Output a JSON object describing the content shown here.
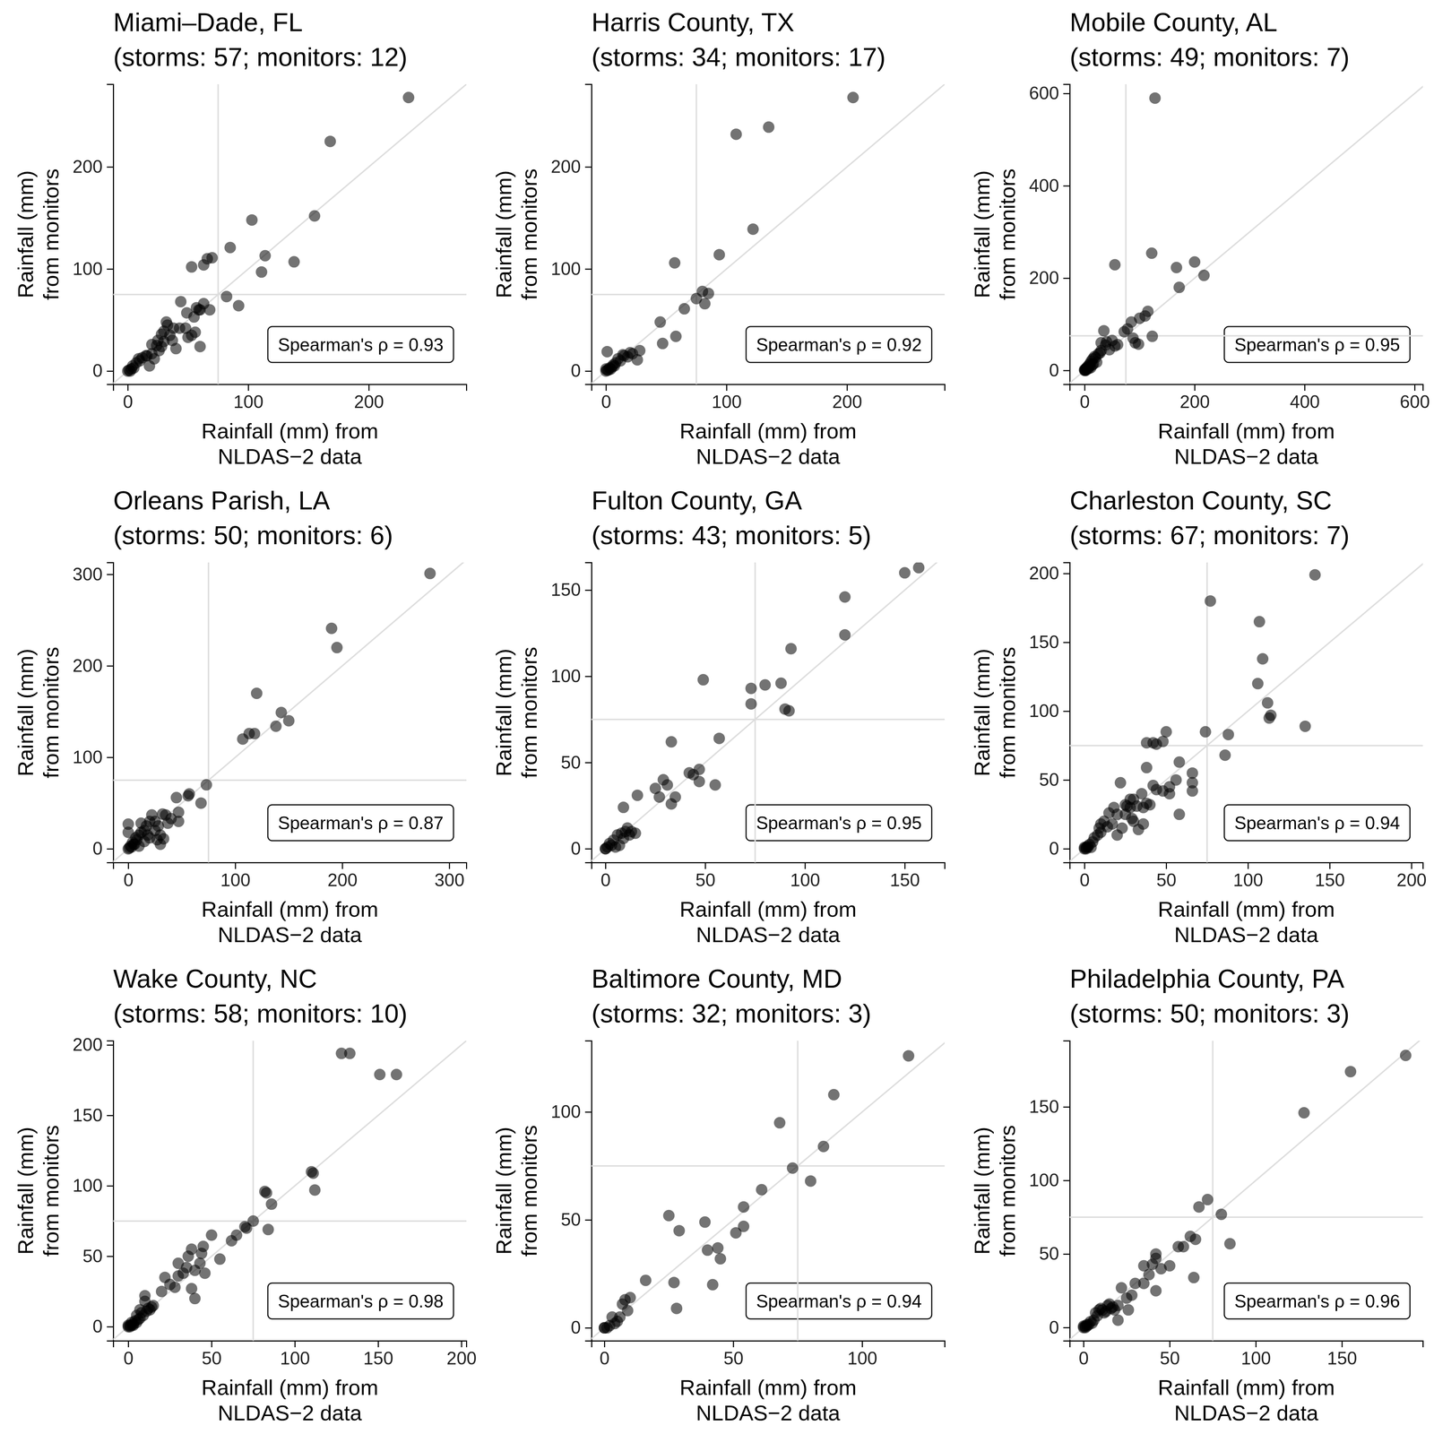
{
  "chart_data": [
    {
      "type": "scatter",
      "title": "Miami–Dade, FL",
      "subtitle": "(storms: 57; monitors: 12)",
      "x_label": [
        "Rainfall (mm)  from",
        "NLDAS−2 data"
      ],
      "y_label": [
        "Rainfall (mm)",
        "from monitors"
      ],
      "annotation": "Spearman's ρ = 0.93",
      "color": "#000000",
      "x": [
        233,
        168,
        103,
        155,
        85,
        114,
        111,
        138,
        70,
        66,
        82,
        92,
        63,
        60,
        68,
        57,
        53,
        63,
        59,
        44,
        55,
        49,
        60,
        56,
        48,
        43,
        38,
        32,
        33,
        28,
        30,
        50,
        53,
        37,
        30,
        28,
        24,
        20,
        20,
        16,
        12,
        10,
        7,
        5,
        3,
        1,
        0,
        2,
        18,
        22,
        25,
        15,
        40,
        35,
        26,
        9,
        4
      ],
      "values": [
        268,
        225,
        148,
        152,
        121,
        113,
        97,
        107,
        111,
        110,
        73,
        64,
        66,
        60,
        60,
        62,
        102,
        104,
        60,
        68,
        53,
        57,
        24,
        38,
        42,
        42,
        42,
        48,
        45,
        36,
        39,
        33,
        35,
        30,
        29,
        24,
        25,
        26,
        17,
        15,
        13,
        10,
        8,
        3,
        2,
        1,
        0,
        0,
        5,
        12,
        30,
        15,
        22,
        35,
        20,
        12,
        5
      ],
      "xlim": [
        -12,
        281
      ],
      "ylim": [
        -13,
        281
      ],
      "xticks": [
        0,
        100,
        200
      ],
      "yticks": [
        0,
        100,
        200
      ],
      "ref_x": 75,
      "ref_y": 75
    },
    {
      "type": "scatter",
      "title": "Harris County, TX",
      "subtitle": "(storms: 34; monitors: 17)",
      "x_label": [
        "Rainfall (mm)  from",
        "NLDAS−2 data"
      ],
      "y_label": [
        "Rainfall (mm)",
        "from monitors"
      ],
      "annotation": "Spearman's ρ = 0.92",
      "color": "#000000",
      "x": [
        205,
        108,
        135,
        122,
        94,
        57,
        75,
        80,
        85,
        82,
        65,
        45,
        58,
        47,
        28,
        26,
        22,
        18,
        15,
        12,
        10,
        8,
        6,
        5,
        3,
        1,
        1,
        0,
        2,
        4,
        7,
        14,
        0,
        20
      ],
      "values": [
        268,
        232,
        239,
        139,
        114,
        106,
        71,
        78,
        76,
        66,
        61,
        48,
        34,
        27,
        20,
        11,
        17,
        14,
        15,
        10,
        12,
        8,
        6,
        4,
        3,
        19,
        1,
        0,
        1,
        2,
        5,
        16,
        2,
        18
      ],
      "xlim": [
        -12,
        281
      ],
      "ylim": [
        -13,
        281
      ],
      "xticks": [
        0,
        100,
        200
      ],
      "yticks": [
        0,
        100,
        200
      ],
      "ref_x": 75,
      "ref_y": 75
    },
    {
      "type": "scatter",
      "title": "Mobile County, AL",
      "subtitle": "(storms: 49; monitors: 7)",
      "x_label": [
        "Rainfall (mm)  from",
        "NLDAS−2 data"
      ],
      "y_label": [
        "Rainfall (mm)",
        "from monitors"
      ],
      "annotation": "Spearman's ρ = 0.95",
      "color": "#000000",
      "x": [
        128,
        55,
        122,
        167,
        200,
        217,
        172,
        123,
        115,
        110,
        100,
        85,
        78,
        72,
        60,
        92,
        98,
        88,
        55,
        40,
        35,
        45,
        38,
        30,
        25,
        20,
        22,
        15,
        12,
        10,
        8,
        5,
        3,
        2,
        1,
        0,
        4,
        6,
        18,
        28,
        30,
        50,
        14,
        7,
        9,
        2,
        0,
        11,
        16
      ],
      "values": [
        590,
        229,
        254,
        223,
        235,
        206,
        180,
        74,
        128,
        118,
        113,
        105,
        90,
        84,
        56,
        60,
        57,
        70,
        53,
        62,
        86,
        45,
        55,
        43,
        36,
        28,
        18,
        25,
        20,
        15,
        12,
        8,
        5,
        2,
        1,
        0,
        3,
        6,
        30,
        38,
        60,
        65,
        12,
        4,
        9,
        0,
        2,
        6,
        14
      ],
      "xlim": [
        -27,
        615
      ],
      "ylim": [
        -30,
        620
      ],
      "xticks": [
        0,
        200,
        400,
        600
      ],
      "yticks": [
        0,
        200,
        400,
        600
      ],
      "ref_x": 75,
      "ref_y": 75
    },
    {
      "type": "scatter",
      "title": "Orleans Parish, LA",
      "subtitle": "(storms: 50; monitors: 6)",
      "x_label": [
        "Rainfall (mm)  from",
        "NLDAS−2 data"
      ],
      "y_label": [
        "Rainfall (mm)",
        "from monitors"
      ],
      "annotation": "Spearman's ρ = 0.87",
      "color": "#000000",
      "x": [
        282,
        190,
        195,
        120,
        143,
        150,
        138,
        113,
        118,
        107,
        73,
        68,
        57,
        56,
        45,
        47,
        40,
        47,
        35,
        32,
        30,
        28,
        25,
        22,
        25,
        20,
        18,
        17,
        15,
        12,
        10,
        8,
        5,
        2,
        0,
        0,
        0,
        1,
        3,
        6,
        10,
        15,
        20,
        30,
        27,
        37,
        12,
        4,
        7,
        33
      ],
      "values": [
        301,
        241,
        220,
        170,
        149,
        140,
        134,
        126,
        126,
        120,
        70,
        50,
        60,
        58,
        56,
        40,
        33,
        30,
        37,
        38,
        15,
        25,
        30,
        37,
        20,
        30,
        15,
        25,
        20,
        18,
        15,
        10,
        5,
        3,
        27,
        18,
        0,
        1,
        2,
        5,
        3,
        8,
        12,
        5,
        10,
        28,
        28,
        7,
        12,
        11
      ],
      "xlim": [
        -14,
        316
      ],
      "ylim": [
        -15,
        313
      ],
      "xticks": [
        0,
        100,
        200,
        300
      ],
      "yticks": [
        0,
        100,
        200,
        300
      ],
      "ref_x": 75,
      "ref_y": 75
    },
    {
      "type": "scatter",
      "title": "Fulton County, GA",
      "subtitle": "(storms: 43; monitors: 5)",
      "x_label": [
        "Rainfall (mm)  from",
        "NLDAS−2 data"
      ],
      "y_label": [
        "Rainfall (mm)",
        "from monitors"
      ],
      "annotation": "Spearman's ρ = 0.95",
      "color": "#000000",
      "x": [
        157,
        150,
        120,
        120,
        93,
        88,
        80,
        73,
        73,
        90,
        92,
        49,
        57,
        33,
        47,
        42,
        44,
        47,
        55,
        31,
        29,
        25,
        27,
        35,
        33,
        16,
        9,
        11,
        13,
        15,
        8,
        10,
        6,
        4,
        2,
        0,
        1,
        0,
        5,
        7,
        12,
        9,
        3
      ],
      "values": [
        163,
        160,
        146,
        124,
        116,
        96,
        95,
        93,
        84,
        81,
        80,
        98,
        64,
        62,
        46,
        44,
        43,
        39,
        37,
        37,
        40,
        35,
        30,
        30,
        26,
        31,
        24,
        12,
        10,
        9,
        9,
        10,
        8,
        5,
        3,
        0,
        1,
        0,
        1,
        2,
        8,
        6,
        2
      ],
      "xlim": [
        -7,
        170
      ],
      "ylim": [
        -8,
        166
      ],
      "xticks": [
        0,
        50,
        100,
        150
      ],
      "yticks": [
        0,
        50,
        100,
        150
      ],
      "ref_x": 75,
      "ref_y": 75
    },
    {
      "type": "scatter",
      "title": "Charleston County, SC",
      "subtitle": "(storms: 67; monitors: 7)",
      "x_label": [
        "Rainfall (mm)  from",
        "NLDAS−2 data"
      ],
      "y_label": [
        "Rainfall (mm)",
        "from monitors"
      ],
      "annotation": "Spearman's ρ = 0.94",
      "color": "#000000",
      "x": [
        141,
        77,
        107,
        109,
        112,
        113,
        106,
        114,
        135,
        88,
        86,
        74,
        66,
        66,
        66,
        58,
        58,
        50,
        48,
        42,
        38,
        44,
        38,
        52,
        48,
        52,
        42,
        35,
        30,
        28,
        25,
        22,
        26,
        32,
        36,
        38,
        40,
        33,
        30,
        28,
        20,
        18,
        15,
        12,
        10,
        10,
        8,
        5,
        3,
        2,
        1,
        0,
        2,
        4,
        1,
        0,
        6,
        14,
        17,
        23,
        25,
        36,
        44,
        56,
        29,
        20,
        9
      ],
      "values": [
        199,
        180,
        165,
        138,
        106,
        95,
        120,
        97,
        89,
        83,
        68,
        85,
        55,
        48,
        42,
        63,
        25,
        85,
        78,
        77,
        77,
        76,
        59,
        45,
        42,
        40,
        46,
        40,
        36,
        36,
        32,
        48,
        31,
        31,
        30,
        33,
        32,
        14,
        20,
        30,
        25,
        30,
        26,
        20,
        18,
        12,
        10,
        5,
        3,
        1,
        0,
        0,
        2,
        1,
        1,
        1,
        8,
        16,
        18,
        15,
        25,
        18,
        43,
        50,
        22,
        10,
        15
      ],
      "xlim": [
        -9,
        207
      ],
      "ylim": [
        -10,
        208
      ],
      "xticks": [
        0,
        50,
        100,
        150,
        200
      ],
      "yticks": [
        0,
        50,
        100,
        150,
        200
      ],
      "ref_x": 75,
      "ref_y": 75
    },
    {
      "type": "scatter",
      "title": "Wake County, NC",
      "subtitle": "(storms: 58; monitors: 10)",
      "x_label": [
        "Rainfall (mm)  from",
        "NLDAS−2 data"
      ],
      "y_label": [
        "Rainfall (mm)",
        "from monitors"
      ],
      "annotation": "Spearman's ρ = 0.98",
      "color": "#000000",
      "x": [
        128,
        133,
        151,
        161,
        110,
        111,
        112,
        82,
        83,
        86,
        84,
        75,
        70,
        71,
        65,
        62,
        55,
        50,
        45,
        44,
        43,
        40,
        38,
        36,
        35,
        33,
        30,
        40,
        38,
        25,
        28,
        22,
        15,
        13,
        12,
        10,
        10,
        8,
        7,
        6,
        5,
        4,
        3,
        2,
        1,
        0,
        1,
        0,
        2,
        3,
        9,
        11,
        14,
        5,
        7,
        20,
        30,
        46
      ],
      "values": [
        194,
        194,
        179,
        179,
        110,
        109,
        97,
        96,
        95,
        87,
        69,
        75,
        71,
        70,
        65,
        61,
        48,
        65,
        57,
        52,
        45,
        40,
        55,
        50,
        42,
        38,
        36,
        20,
        27,
        30,
        28,
        35,
        15,
        12,
        13,
        22,
        18,
        10,
        6,
        5,
        3,
        4,
        2,
        1,
        1,
        0,
        0,
        1,
        3,
        1,
        8,
        11,
        14,
        8,
        12,
        25,
        45,
        38
      ],
      "xlim": [
        -9,
        203
      ],
      "ylim": [
        -10,
        203
      ],
      "xticks": [
        0,
        50,
        100,
        150,
        200
      ],
      "yticks": [
        0,
        50,
        100,
        150,
        200
      ],
      "ref_x": 75,
      "ref_y": 75
    },
    {
      "type": "scatter",
      "title": "Baltimore County, MD",
      "subtitle": "(storms: 32; monitors: 3)",
      "x_label": [
        "Rainfall (mm)  from",
        "NLDAS−2 data"
      ],
      "y_label": [
        "Rainfall (mm)",
        "from monitors"
      ],
      "annotation": "Spearman's ρ = 0.94",
      "color": "#000000",
      "x": [
        118,
        89,
        85,
        68,
        73,
        80,
        61,
        54,
        54,
        51,
        39,
        44,
        40,
        45,
        42,
        29,
        25,
        27,
        28,
        16,
        10,
        8,
        9,
        6,
        3,
        4,
        2,
        0,
        1,
        5,
        7,
        0
      ],
      "values": [
        126,
        108,
        84,
        95,
        74,
        68,
        64,
        56,
        47,
        44,
        49,
        37,
        36,
        32,
        20,
        45,
        52,
        21,
        9,
        22,
        14,
        13,
        8,
        5,
        5,
        2,
        1,
        0,
        0,
        3,
        11,
        0
      ],
      "xlim": [
        -5,
        132
      ],
      "ylim": [
        -6,
        133
      ],
      "xticks": [
        0,
        50,
        100
      ],
      "yticks": [
        0,
        50,
        100
      ],
      "ref_x": 75,
      "ref_y": 75
    },
    {
      "type": "scatter",
      "title": "Philadelphia County, PA",
      "subtitle": "(storms: 50; monitors: 3)",
      "x_label": [
        "Rainfall (mm)  from",
        "NLDAS−2 data"
      ],
      "y_label": [
        "Rainfall (mm)",
        "from monitors"
      ],
      "annotation": "Spearman's ρ = 0.96",
      "color": "#000000",
      "x": [
        187,
        155,
        128,
        72,
        67,
        80,
        85,
        62,
        65,
        64,
        58,
        55,
        50,
        45,
        42,
        42,
        40,
        38,
        35,
        42,
        35,
        30,
        28,
        25,
        20,
        22,
        20,
        18,
        17,
        15,
        12,
        10,
        8,
        6,
        5,
        3,
        2,
        1,
        0,
        1,
        0,
        4,
        7,
        9,
        11,
        13,
        14,
        16,
        26,
        2
      ],
      "values": [
        185,
        174,
        146,
        87,
        82,
        77,
        57,
        62,
        60,
        34,
        55,
        55,
        42,
        40,
        47,
        50,
        43,
        36,
        42,
        25,
        30,
        30,
        22,
        20,
        15,
        27,
        5,
        12,
        14,
        16,
        10,
        13,
        8,
        5,
        3,
        2,
        1,
        1,
        0,
        0,
        1,
        4,
        10,
        12,
        12,
        11,
        15,
        13,
        12,
        2
      ],
      "xlim": [
        -8,
        197
      ],
      "ylim": [
        -9,
        195
      ],
      "xticks": [
        0,
        50,
        100,
        150
      ],
      "yticks": [
        0,
        50,
        100,
        150
      ],
      "ref_x": 75,
      "ref_y": 75
    }
  ]
}
